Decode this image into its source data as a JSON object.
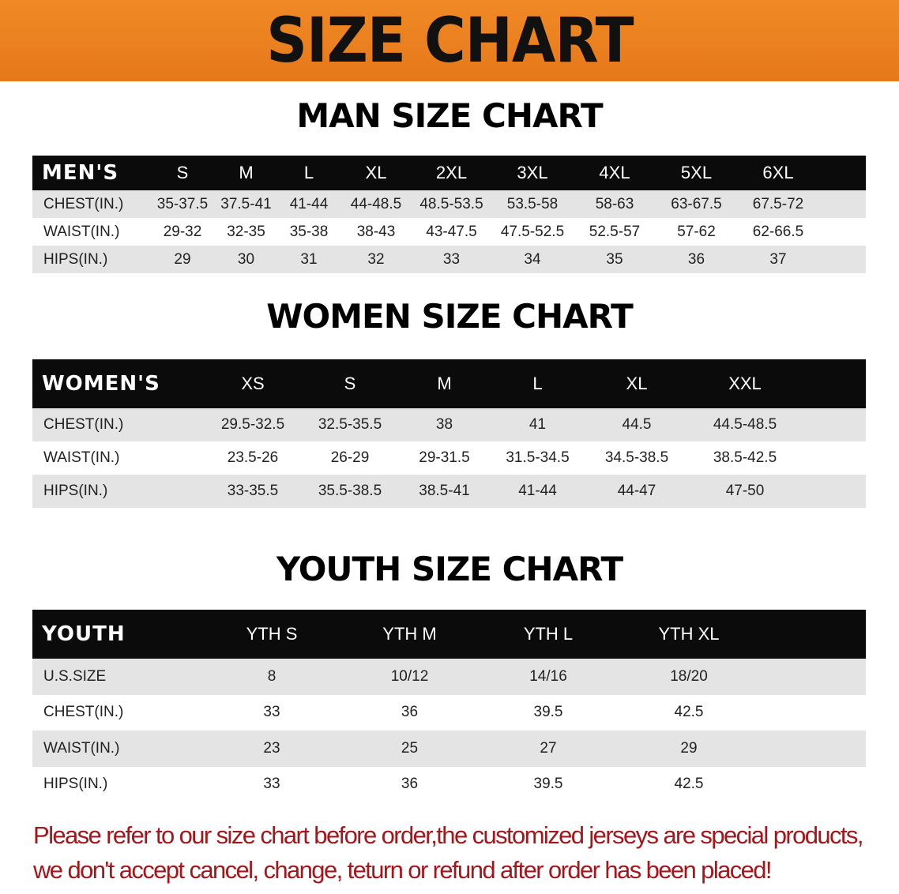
{
  "title": "SIZE CHART",
  "men": {
    "title": "MAN SIZE CHART",
    "header": [
      "MEN'S",
      "S",
      "M",
      "L",
      "XL",
      "2XL",
      "3XL",
      "4XL",
      "5XL",
      "6XL",
      ""
    ],
    "rows": [
      [
        "CHEST(IN.)",
        "35-37.5",
        "37.5-41",
        "41-44",
        "44-48.5",
        "48.5-53.5",
        "53.5-58",
        "58-63",
        "63-67.5",
        "67.5-72",
        ""
      ],
      [
        "WAIST(IN.)",
        "29-32",
        "32-35",
        "35-38",
        "38-43",
        "43-47.5",
        "47.5-52.5",
        "52.5-57",
        "57-62",
        "62-66.5",
        ""
      ],
      [
        "HIPS(IN.)",
        "29",
        "30",
        "31",
        "32",
        "33",
        "34",
        "35",
        "36",
        "37",
        ""
      ]
    ]
  },
  "women": {
    "title": "WOMEN SIZE CHART",
    "header": [
      "WOMEN'S",
      "XS",
      "S",
      "M",
      "L",
      "XL",
      "XXL",
      ""
    ],
    "rows": [
      [
        "CHEST(IN.)",
        "29.5-32.5",
        "32.5-35.5",
        "38",
        "41",
        "44.5",
        "44.5-48.5",
        ""
      ],
      [
        "WAIST(IN.)",
        "23.5-26",
        "26-29",
        "29-31.5",
        "31.5-34.5",
        "34.5-38.5",
        "38.5-42.5",
        ""
      ],
      [
        "HIPS(IN.)",
        "33-35.5",
        "35.5-38.5",
        "38.5-41",
        "41-44",
        "44-47",
        "47-50",
        ""
      ]
    ]
  },
  "youth": {
    "title": "YOUTH SIZE CHART",
    "header": [
      "YOUTH",
      "YTH S",
      "YTH M",
      "YTH L",
      "YTH XL",
      ""
    ],
    "rows": [
      [
        "U.S.SIZE",
        "8",
        "10/12",
        "14/16",
        "18/20",
        ""
      ],
      [
        "CHEST(IN.)",
        "33",
        "36",
        "39.5",
        "42.5",
        ""
      ],
      [
        "WAIST(IN.)",
        "23",
        "25",
        "27",
        "29",
        ""
      ],
      [
        "HIPS(IN.)",
        "33",
        "36",
        "39.5",
        "42.5",
        ""
      ]
    ]
  },
  "note": {
    "line1": "Please refer to our size chart before order,the customized jerseys are special products,",
    "line2": "we don't accept cancel, change, teturn or refund after order has been placed!"
  },
  "colors": {
    "banner": "#e87c1c",
    "header_row": "#0b0b0b",
    "stripe": "#e4e4e4",
    "note": "#a5161b"
  }
}
